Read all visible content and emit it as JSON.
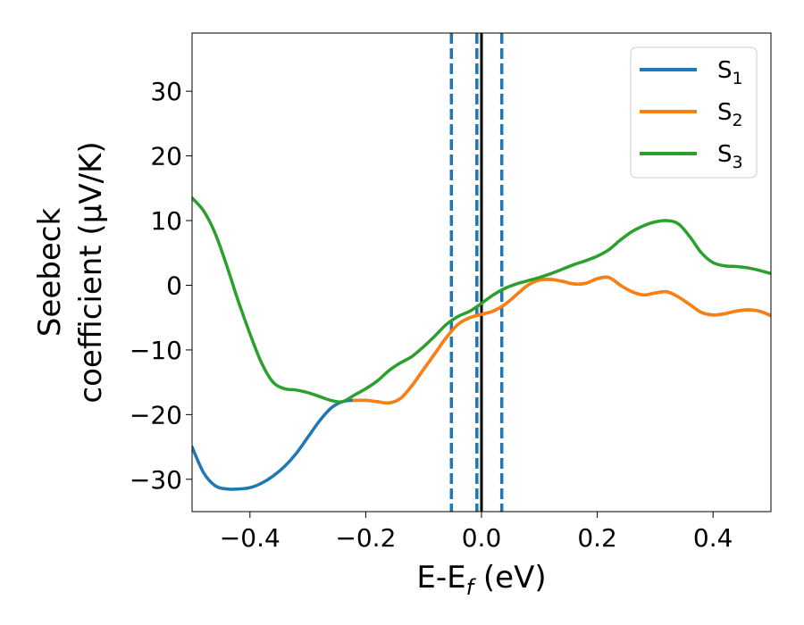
{
  "chart_data": {
    "type": "line",
    "title": "",
    "xlabel": "E-E",
    "xlabel_sub": "f",
    "xlabel_unit": " (eV)",
    "ylabel_line1": "Seebeck",
    "ylabel_line2": "coefficient  (μV/K)",
    "xlim": [
      -0.5,
      0.5
    ],
    "ylim": [
      -35,
      39
    ],
    "xticks": [
      -0.4,
      -0.2,
      0.0,
      0.2,
      0.4
    ],
    "xtick_labels": [
      "−0.4",
      "−0.2",
      "0.0",
      "0.2",
      "0.4"
    ],
    "yticks": [
      -30,
      -20,
      -10,
      0,
      10,
      20,
      30
    ],
    "ytick_labels": [
      "−30",
      "−20",
      "−10",
      "0",
      "10",
      "20",
      "30"
    ],
    "grid": false,
    "legend_position": "top-right",
    "series": [
      {
        "name": "S",
        "sub": "1",
        "color": "#1f77b4",
        "points": [
          [
            -0.5,
            -25
          ],
          [
            -0.48,
            -29
          ],
          [
            -0.46,
            -31
          ],
          [
            -0.44,
            -31.5
          ],
          [
            -0.42,
            -31.5
          ],
          [
            -0.4,
            -31.3
          ],
          [
            -0.38,
            -30.6
          ],
          [
            -0.36,
            -29.5
          ],
          [
            -0.34,
            -28
          ],
          [
            -0.32,
            -26
          ],
          [
            -0.3,
            -23.5
          ],
          [
            -0.28,
            -21
          ],
          [
            -0.26,
            -19
          ],
          [
            -0.24,
            -18
          ],
          [
            -0.22,
            -17.8
          ],
          [
            -0.2,
            -17.8
          ],
          [
            -0.18,
            -18
          ],
          [
            -0.16,
            -18.2
          ],
          [
            -0.14,
            -17.5
          ],
          [
            -0.12,
            -15.5
          ],
          [
            -0.1,
            -13
          ],
          [
            -0.08,
            -10.5
          ],
          [
            -0.06,
            -8
          ],
          [
            -0.04,
            -6
          ],
          [
            -0.02,
            -5
          ],
          [
            0.0,
            -4.5
          ],
          [
            0.02,
            -4
          ],
          [
            0.04,
            -3
          ],
          [
            0.06,
            -1.5
          ],
          [
            0.08,
            0
          ],
          [
            0.1,
            0.8
          ],
          [
            0.12,
            0.9
          ],
          [
            0.14,
            0.6
          ],
          [
            0.16,
            0.2
          ],
          [
            0.18,
            0.3
          ],
          [
            0.2,
            1
          ],
          [
            0.22,
            1.2
          ],
          [
            0.24,
            0
          ],
          [
            0.26,
            -1
          ],
          [
            0.28,
            -1.5
          ],
          [
            0.3,
            -1.2
          ],
          [
            0.32,
            -1
          ],
          [
            0.34,
            -1.8
          ],
          [
            0.36,
            -3
          ],
          [
            0.38,
            -4.2
          ],
          [
            0.4,
            -4.6
          ],
          [
            0.42,
            -4.4
          ],
          [
            0.44,
            -4
          ],
          [
            0.46,
            -3.8
          ],
          [
            0.48,
            -4
          ],
          [
            0.5,
            -4.7
          ]
        ]
      },
      {
        "name": "S",
        "sub": "2",
        "color": "#ff7f0e",
        "points": [
          [
            -0.22,
            -17.8
          ],
          [
            -0.2,
            -17.8
          ],
          [
            -0.18,
            -18
          ],
          [
            -0.16,
            -18.2
          ],
          [
            -0.14,
            -17.5
          ],
          [
            -0.12,
            -15.5
          ],
          [
            -0.1,
            -13
          ],
          [
            -0.08,
            -10.5
          ],
          [
            -0.06,
            -8
          ],
          [
            -0.04,
            -6
          ],
          [
            -0.02,
            -5
          ],
          [
            0.0,
            -4.5
          ],
          [
            0.02,
            -4
          ],
          [
            0.04,
            -3
          ],
          [
            0.06,
            -1.5
          ],
          [
            0.08,
            0
          ],
          [
            0.1,
            0.8
          ],
          [
            0.12,
            0.9
          ],
          [
            0.14,
            0.6
          ],
          [
            0.16,
            0.2
          ],
          [
            0.18,
            0.3
          ],
          [
            0.2,
            1
          ],
          [
            0.22,
            1.2
          ],
          [
            0.24,
            0
          ],
          [
            0.26,
            -1
          ],
          [
            0.28,
            -1.5
          ],
          [
            0.3,
            -1.2
          ],
          [
            0.32,
            -1
          ],
          [
            0.34,
            -1.8
          ],
          [
            0.36,
            -3
          ],
          [
            0.38,
            -4.2
          ],
          [
            0.4,
            -4.6
          ],
          [
            0.42,
            -4.4
          ],
          [
            0.44,
            -4
          ],
          [
            0.46,
            -3.8
          ],
          [
            0.48,
            -4
          ],
          [
            0.5,
            -4.7
          ]
        ]
      },
      {
        "name": "S",
        "sub": "3",
        "color": "#2ca02c",
        "points": [
          [
            -0.5,
            13.5
          ],
          [
            -0.48,
            11.5
          ],
          [
            -0.46,
            8
          ],
          [
            -0.44,
            3
          ],
          [
            -0.42,
            -2.5
          ],
          [
            -0.4,
            -7.5
          ],
          [
            -0.38,
            -12
          ],
          [
            -0.36,
            -15
          ],
          [
            -0.34,
            -16
          ],
          [
            -0.32,
            -16.2
          ],
          [
            -0.3,
            -16.6
          ],
          [
            -0.28,
            -17.2
          ],
          [
            -0.26,
            -17.8
          ],
          [
            -0.24,
            -18
          ],
          [
            -0.22,
            -17
          ],
          [
            -0.2,
            -16
          ],
          [
            -0.18,
            -14.8
          ],
          [
            -0.16,
            -13.2
          ],
          [
            -0.14,
            -12
          ],
          [
            -0.12,
            -11
          ],
          [
            -0.1,
            -9.5
          ],
          [
            -0.08,
            -7.8
          ],
          [
            -0.06,
            -6
          ],
          [
            -0.04,
            -4.8
          ],
          [
            -0.02,
            -4
          ],
          [
            0.0,
            -2.8
          ],
          [
            0.02,
            -1.5
          ],
          [
            0.04,
            -0.5
          ],
          [
            0.06,
            0.2
          ],
          [
            0.08,
            0.7
          ],
          [
            0.1,
            1.2
          ],
          [
            0.12,
            1.8
          ],
          [
            0.14,
            2.5
          ],
          [
            0.16,
            3.2
          ],
          [
            0.18,
            3.8
          ],
          [
            0.2,
            4.5
          ],
          [
            0.22,
            5.5
          ],
          [
            0.24,
            7
          ],
          [
            0.26,
            8.3
          ],
          [
            0.28,
            9.2
          ],
          [
            0.3,
            9.8
          ],
          [
            0.32,
            10
          ],
          [
            0.34,
            9.5
          ],
          [
            0.36,
            7.5
          ],
          [
            0.38,
            5
          ],
          [
            0.4,
            3.5
          ],
          [
            0.42,
            3
          ],
          [
            0.44,
            2.9
          ],
          [
            0.46,
            2.7
          ],
          [
            0.48,
            2.3
          ],
          [
            0.5,
            1.8
          ]
        ]
      }
    ],
    "vertical_lines": [
      {
        "x": -0.052,
        "style": "dashed",
        "color": "#1f77b4"
      },
      {
        "x": -0.008,
        "style": "dashed",
        "color": "#1f77b4"
      },
      {
        "x": 0.035,
        "style": "dashed",
        "color": "#1f77b4"
      },
      {
        "x": 0.0,
        "style": "solid",
        "color": "#000000"
      }
    ]
  }
}
